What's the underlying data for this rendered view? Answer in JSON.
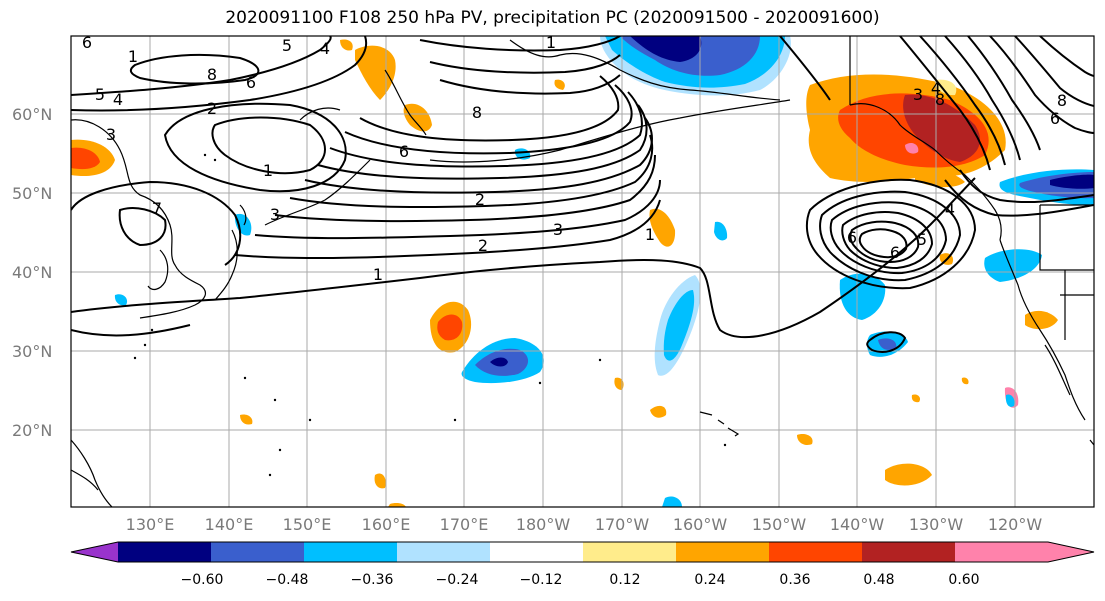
{
  "title": "2020091100 F108 250 hPa PV, precipitation PC (2020091500 - 2020091600)",
  "lat_labels": [
    "60°N",
    "50°N",
    "40°N",
    "30°N",
    "20°N"
  ],
  "lon_labels": [
    "130°E",
    "140°E",
    "150°E",
    "160°E",
    "170°E",
    "180°W",
    "170°W",
    "160°W",
    "150°W",
    "140°W",
    "130°W",
    "120°W"
  ],
  "colorbar": {
    "tick_labels": [
      "−0.60",
      "−0.48",
      "−0.36",
      "−0.24",
      "−0.12",
      "0.12",
      "0.24",
      "0.36",
      "0.48",
      "0.60"
    ],
    "colors": [
      "#9933cc",
      "#000080",
      "#3a5fcd",
      "#00bfff",
      "#b0e2ff",
      "#ffffff",
      "#ffec8b",
      "#ffa500",
      "#ff4500",
      "#b22222",
      "#ff82ab"
    ]
  },
  "contour_labels": [
    "6",
    "1",
    "5",
    "4",
    "8",
    "5",
    "4",
    "6",
    "2",
    "3",
    "1",
    "7",
    "3",
    "2",
    "1",
    "1",
    "8",
    "6",
    "3",
    "2",
    "1",
    "8",
    "4",
    "6",
    "5",
    "3",
    "4",
    "8",
    "6",
    "6"
  ]
}
